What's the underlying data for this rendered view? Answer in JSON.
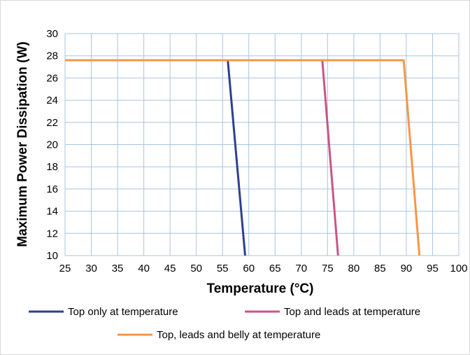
{
  "chart_data": {
    "type": "line",
    "title": "",
    "xlabel": "Temperature (°C)",
    "ylabel": "Maximum Power Dissipation (W)",
    "xlim": [
      25,
      100
    ],
    "ylim": [
      10,
      30
    ],
    "xticks": [
      25,
      30,
      35,
      40,
      45,
      50,
      55,
      60,
      65,
      70,
      75,
      80,
      85,
      90,
      95,
      100
    ],
    "yticks": [
      10,
      12,
      14,
      16,
      18,
      20,
      22,
      24,
      26,
      28,
      30
    ],
    "grid": true,
    "legend_position": "bottom",
    "series": [
      {
        "name": "Top only at temperature",
        "color": "#2f3f8f",
        "x": [
          25,
          56.0,
          59.3
        ],
        "y": [
          27.6,
          27.6,
          10
        ]
      },
      {
        "name": "Top and leads at temperature",
        "color": "#c8558a",
        "x": [
          25,
          74.0,
          77.0
        ],
        "y": [
          27.6,
          27.6,
          10
        ]
      },
      {
        "name": "Top, leads and belly at temperature",
        "color": "#f79646",
        "x": [
          25,
          89.5,
          92.5
        ],
        "y": [
          27.6,
          27.6,
          10
        ]
      }
    ]
  }
}
